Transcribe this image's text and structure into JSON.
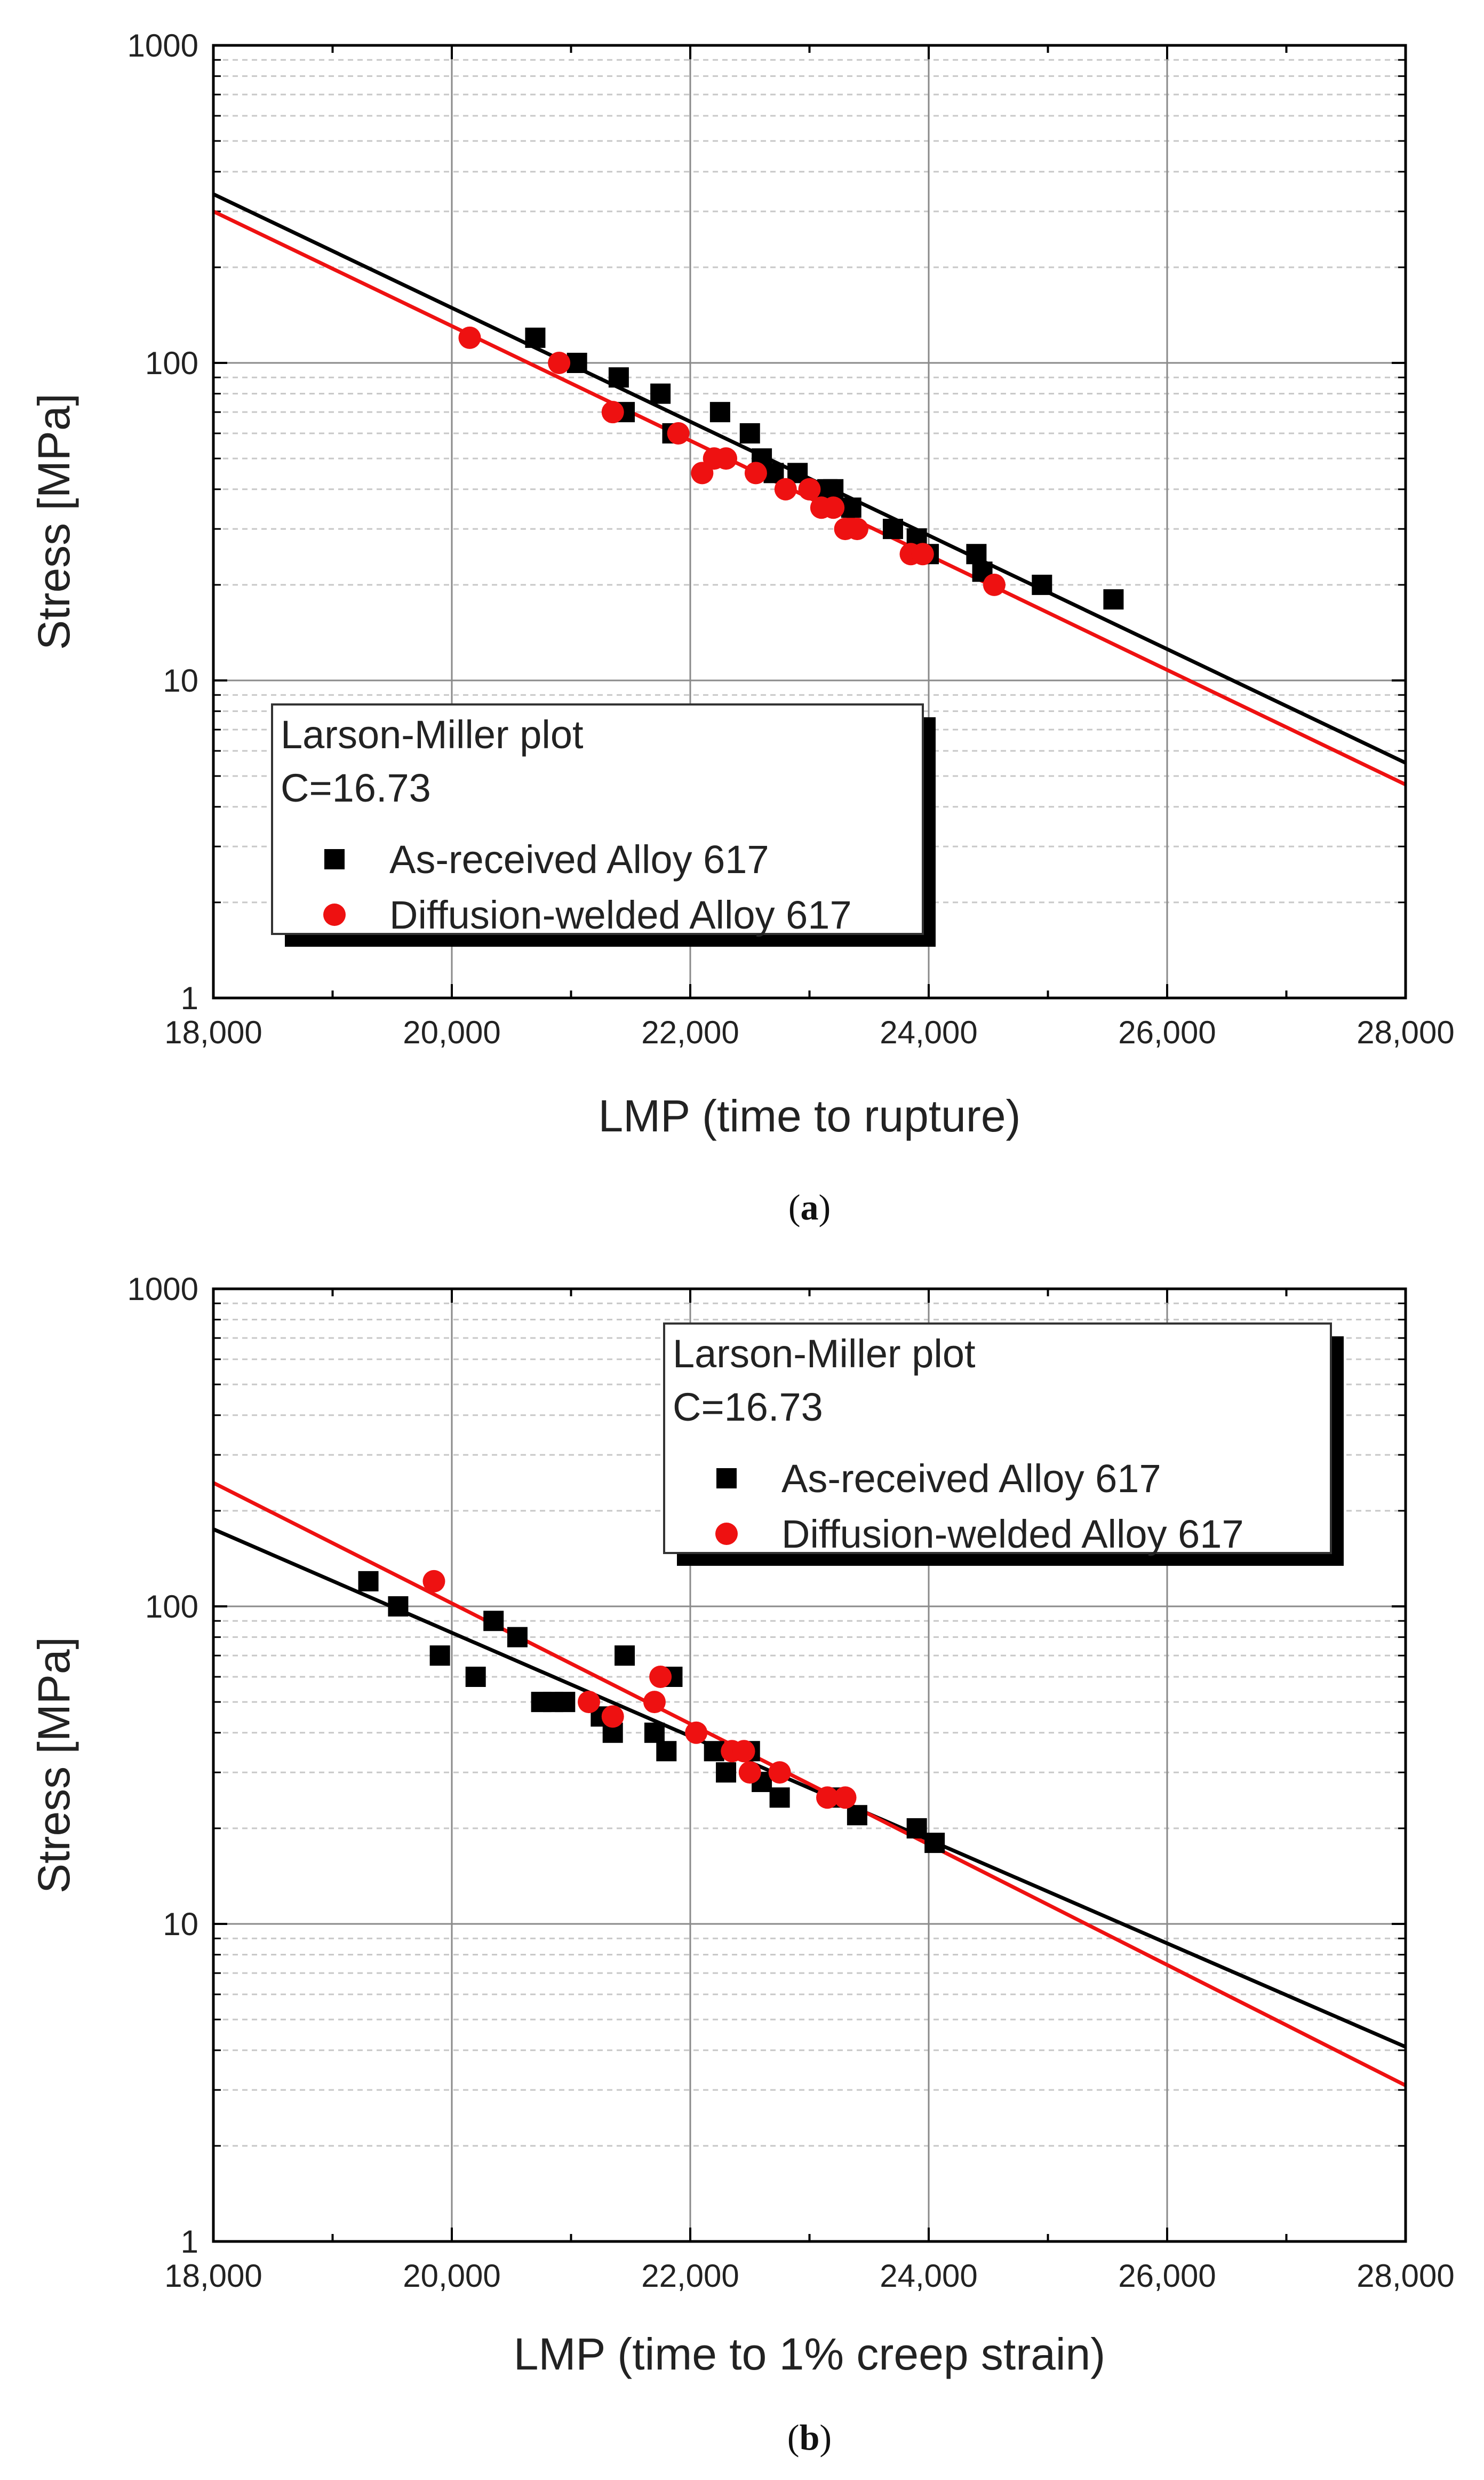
{
  "chart_data": [
    {
      "type": "scatter",
      "panel": "a",
      "caption_open": "(",
      "caption_letter": "a",
      "caption_close": ")",
      "xlabel": "LMP (time to rupture)",
      "ylabel": "Stress [MPa]",
      "xlim": [
        18000,
        28000
      ],
      "ylim": [
        1,
        1000
      ],
      "yscale": "log",
      "grid": true,
      "x_ticks": [
        18000,
        20000,
        22000,
        24000,
        26000,
        28000
      ],
      "x_tick_labels": [
        "18,000",
        "20,000",
        "22,000",
        "24,000",
        "26,000",
        "28,000"
      ],
      "y_ticks": [
        1,
        10,
        100,
        1000
      ],
      "y_tick_labels": [
        "1",
        "10",
        "100",
        "1000"
      ],
      "legend": {
        "position": "bottom-left",
        "title": "Larson-Miller plot",
        "subtitle": "C=16.73",
        "entries": [
          "As-received Alloy 617",
          "Diffusion-welded Alloy 617"
        ]
      },
      "series": [
        {
          "name": "As-received Alloy 617",
          "marker": "square",
          "color": "#000000",
          "points": [
            [
              20700,
              120
            ],
            [
              21050,
              100
            ],
            [
              21400,
              90
            ],
            [
              21450,
              70
            ],
            [
              21750,
              80
            ],
            [
              21850,
              60
            ],
            [
              22250,
              70
            ],
            [
              22500,
              60
            ],
            [
              22600,
              50
            ],
            [
              22700,
              45
            ],
            [
              22900,
              45
            ],
            [
              23150,
              40
            ],
            [
              23200,
              40
            ],
            [
              23350,
              35
            ],
            [
              23700,
              30
            ],
            [
              23900,
              28
            ],
            [
              24000,
              25
            ],
            [
              24400,
              25
            ],
            [
              24450,
              22
            ],
            [
              24950,
              20
            ],
            [
              25550,
              18
            ]
          ],
          "fit": [
            [
              18000,
              340
            ],
            [
              28000,
              5.5
            ]
          ]
        },
        {
          "name": "Diffusion-welded Alloy 617",
          "marker": "circle",
          "color": "#ee1111",
          "points": [
            [
              20150,
              120
            ],
            [
              20900,
              100
            ],
            [
              21350,
              70
            ],
            [
              21900,
              60
            ],
            [
              22100,
              45
            ],
            [
              22200,
              50
            ],
            [
              22300,
              50
            ],
            [
              22550,
              45
            ],
            [
              22800,
              40
            ],
            [
              23000,
              40
            ],
            [
              23100,
              35
            ],
            [
              23200,
              35
            ],
            [
              23300,
              30
            ],
            [
              23400,
              30
            ],
            [
              23850,
              25
            ],
            [
              23950,
              25
            ],
            [
              24550,
              20
            ]
          ],
          "fit": [
            [
              18000,
              300
            ],
            [
              28000,
              4.7
            ]
          ]
        }
      ]
    },
    {
      "type": "scatter",
      "panel": "b",
      "caption_open": "(",
      "caption_letter": "b",
      "caption_close": ")",
      "xlabel": "LMP (time to 1% creep strain)",
      "ylabel": "Stress [MPa]",
      "xlim": [
        18000,
        28000
      ],
      "ylim": [
        1,
        1000
      ],
      "yscale": "log",
      "grid": true,
      "x_ticks": [
        18000,
        20000,
        22000,
        24000,
        26000,
        28000
      ],
      "x_tick_labels": [
        "18,000",
        "20,000",
        "22,000",
        "24,000",
        "26,000",
        "28,000"
      ],
      "y_ticks": [
        1,
        10,
        100,
        1000
      ],
      "y_tick_labels": [
        "1",
        "10",
        "100",
        "1000"
      ],
      "legend": {
        "position": "top-right",
        "title": "Larson-Miller plot",
        "subtitle": "C=16.73",
        "entries": [
          "As-received Alloy 617",
          "Diffusion-welded Alloy 617"
        ]
      },
      "series": [
        {
          "name": "As-received Alloy 617",
          "marker": "square",
          "color": "#000000",
          "points": [
            [
              19300,
              120
            ],
            [
              19550,
              100
            ],
            [
              19900,
              70
            ],
            [
              20200,
              60
            ],
            [
              20350,
              90
            ],
            [
              20550,
              80
            ],
            [
              20750,
              50
            ],
            [
              20850,
              50
            ],
            [
              20950,
              50
            ],
            [
              21250,
              45
            ],
            [
              21350,
              40
            ],
            [
              21450,
              70
            ],
            [
              21700,
              40
            ],
            [
              21800,
              35
            ],
            [
              21850,
              60
            ],
            [
              22200,
              35
            ],
            [
              22300,
              30
            ],
            [
              22500,
              35
            ],
            [
              22600,
              28
            ],
            [
              22750,
              25
            ],
            [
              23250,
              25
            ],
            [
              23400,
              22
            ],
            [
              23900,
              20
            ],
            [
              24050,
              18
            ]
          ],
          "fit": [
            [
              18000,
              175
            ],
            [
              28000,
              4.1
            ]
          ]
        },
        {
          "name": "Diffusion-welded Alloy 617",
          "marker": "circle",
          "color": "#ee1111",
          "points": [
            [
              19850,
              120
            ],
            [
              21150,
              50
            ],
            [
              21350,
              45
            ],
            [
              21700,
              50
            ],
            [
              21750,
              60
            ],
            [
              22050,
              40
            ],
            [
              22350,
              35
            ],
            [
              22450,
              35
            ],
            [
              22500,
              30
            ],
            [
              22750,
              30
            ],
            [
              23150,
              25
            ],
            [
              23300,
              25
            ]
          ],
          "fit": [
            [
              18000,
              245
            ],
            [
              28000,
              3.1
            ]
          ]
        }
      ]
    }
  ]
}
